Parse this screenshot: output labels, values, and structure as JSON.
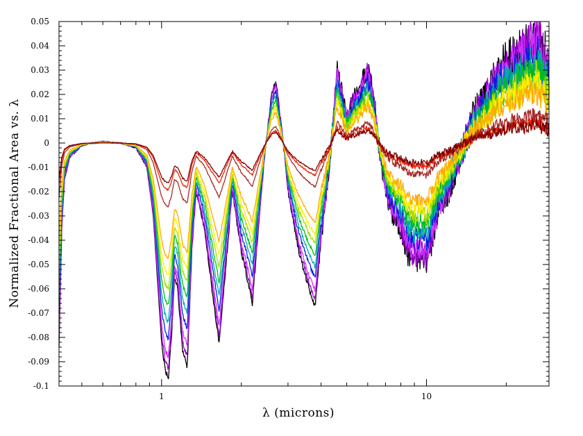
{
  "chart_data": {
    "type": "line",
    "title": "",
    "xlabel": "λ (microns)",
    "ylabel": "Normalized Fractional Area vs. λ",
    "x_scale": "log",
    "xlim": [
      0.41,
      29
    ],
    "ylim": [
      -0.1,
      0.05
    ],
    "y_ticks": [
      0.05,
      0.04,
      0.03,
      0.02,
      0.01,
      0,
      -0.01,
      -0.02,
      -0.03,
      -0.04,
      -0.05,
      -0.06,
      -0.07,
      -0.08,
      -0.09,
      -0.1
    ],
    "y_tick_labels": [
      "0.05",
      "0.04",
      "0.03",
      "0.02",
      "0.01",
      "0",
      "-0.01",
      "-0.02",
      "-0.03",
      "-0.04",
      "-0.05",
      "-0.06",
      "-0.07",
      "-0.08",
      "-0.09",
      "-0.1"
    ],
    "x_major_ticks": [
      1,
      10
    ],
    "x_tick_labels": [
      "1",
      "10"
    ],
    "grid": false,
    "legend": "none",
    "features": [
      {
        "x": 0.42,
        "y_min": -0.084
      },
      {
        "x": 1.06,
        "y_min": -0.097
      },
      {
        "x": 1.25,
        "y_min": -0.092
      },
      {
        "x": 1.65,
        "y_min": -0.083
      },
      {
        "x": 2.2,
        "y_min": -0.066
      },
      {
        "x": 2.7,
        "y_max": 0.026
      },
      {
        "x": 3.8,
        "y_min": -0.067
      },
      {
        "x": 4.6,
        "y_max": 0.031
      },
      {
        "x": 6.2,
        "y_max": 0.031
      },
      {
        "x": 10.0,
        "y_min": -0.049
      },
      {
        "x": 26.0,
        "y_max": 0.044
      }
    ],
    "series": [
      {
        "color": "#000000",
        "scale": 1.0
      },
      {
        "color": "#9a00cc",
        "scale": 0.96
      },
      {
        "color": "#cc33ff",
        "scale": 0.91
      },
      {
        "color": "#0022dd",
        "scale": 0.83
      },
      {
        "color": "#00aaaa",
        "scale": 0.76
      },
      {
        "color": "#00bb22",
        "scale": 0.69
      },
      {
        "color": "#aadd00",
        "scale": 0.62
      },
      {
        "color": "#ffee00",
        "scale": 0.56
      },
      {
        "color": "#ffaa00",
        "scale": 0.49
      },
      {
        "color": "#ee2200",
        "scale": 0.2
      },
      {
        "color": "#a52a2a",
        "scale": 0.27
      },
      {
        "color": "#800000",
        "scale": 0.17
      }
    ],
    "series_shape": {
      "x": [
        0.41,
        0.415,
        0.42,
        0.43,
        0.45,
        0.48,
        0.5,
        0.55,
        0.6,
        0.7,
        0.8,
        0.88,
        0.93,
        0.97,
        1.0,
        1.03,
        1.06,
        1.09,
        1.12,
        1.15,
        1.2,
        1.25,
        1.3,
        1.35,
        1.45,
        1.55,
        1.65,
        1.75,
        1.85,
        2.0,
        2.1,
        2.2,
        2.3,
        2.45,
        2.6,
        2.7,
        2.85,
        3.0,
        3.3,
        3.6,
        3.8,
        4.0,
        4.3,
        4.6,
        4.8,
        5.0,
        5.3,
        5.6,
        6.0,
        6.3,
        6.6,
        7.0,
        7.5,
        8.0,
        8.5,
        9.0,
        9.5,
        10.0,
        10.5,
        11.0,
        12.0,
        13.0,
        14.0,
        15.0,
        17.0,
        19.0,
        21.0,
        23.0,
        25.0,
        26.0,
        27.0,
        28.0,
        29.0
      ],
      "y": [
        -0.084,
        -0.06,
        -0.035,
        -0.015,
        -0.006,
        -0.003,
        -0.001,
        0.0,
        0.0005,
        0.0,
        -0.002,
        -0.01,
        -0.03,
        -0.06,
        -0.082,
        -0.093,
        -0.097,
        -0.08,
        -0.055,
        -0.06,
        -0.085,
        -0.092,
        -0.045,
        -0.02,
        -0.035,
        -0.06,
        -0.083,
        -0.05,
        -0.02,
        -0.045,
        -0.055,
        -0.066,
        -0.04,
        -0.005,
        0.02,
        0.026,
        0.005,
        -0.02,
        -0.045,
        -0.06,
        -0.067,
        -0.04,
        -0.01,
        0.031,
        0.02,
        0.01,
        0.018,
        0.022,
        0.031,
        0.02,
        0.0,
        -0.02,
        -0.03,
        -0.035,
        -0.045,
        -0.048,
        -0.047,
        -0.049,
        -0.04,
        -0.03,
        -0.02,
        -0.01,
        0.0,
        0.01,
        0.02,
        0.03,
        0.035,
        0.038,
        0.042,
        0.044,
        0.04,
        0.035,
        0.03
      ]
    }
  }
}
